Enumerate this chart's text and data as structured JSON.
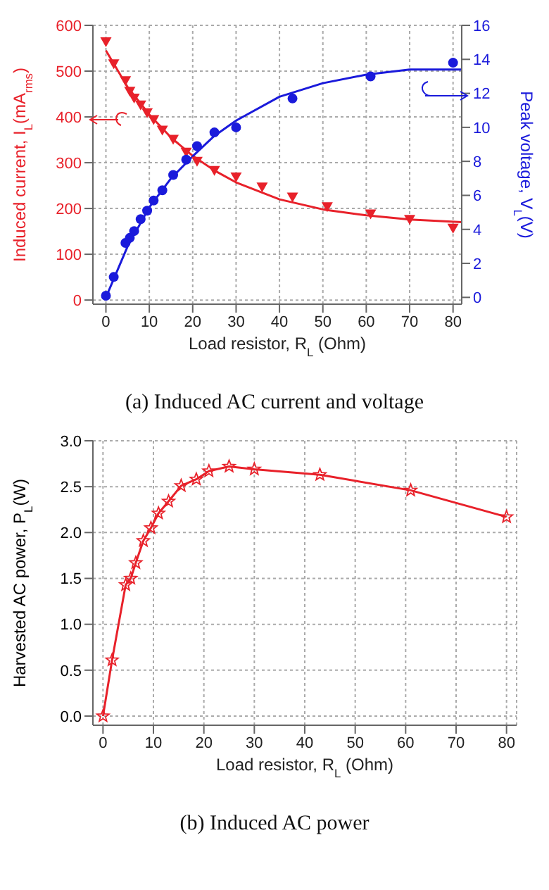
{
  "chart_data": [
    {
      "type": "scatter",
      "xlabel": "Load resistor, R$_{L}$ (Ohm)",
      "ylabel": "Induced current, I$_{L}$(mA$_{rms}$)",
      "y2label": "Peak voltage, V$_{L}$(V)",
      "annotations": [
        "(a) Induced AC current and voltage"
      ],
      "xlim": [
        -3,
        82
      ],
      "xticks": [
        0,
        10,
        20,
        30,
        40,
        50,
        60,
        70,
        80
      ],
      "ylim": [
        -9,
        600
      ],
      "yticks": [
        0,
        100,
        200,
        300,
        400,
        500,
        600
      ],
      "y2lim": [
        -0.4,
        16
      ],
      "y2ticks": [
        0,
        2,
        4,
        6,
        8,
        10,
        12,
        14,
        16
      ],
      "grid": true,
      "series": [
        {
          "color": "#e8212a",
          "marker": "triangle",
          "x": [
            0,
            1.8,
            4.5,
            5.5,
            6.5,
            8,
            9.5,
            11,
            13,
            15.5,
            18.5,
            21,
            25,
            30,
            36,
            43,
            51,
            61,
            70,
            80
          ],
          "values": [
            563,
            515,
            478,
            455,
            440,
            425,
            408,
            393,
            370,
            350,
            322,
            302,
            282,
            268,
            246,
            224,
            203,
            187,
            175,
            156
          ]
        },
        {
          "type": "line",
          "color": "#e8212a",
          "x": [
            0,
            5,
            10,
            15,
            20,
            25,
            30,
            40,
            50,
            60,
            70,
            82
          ],
          "values": [
            545,
            465,
            405,
            355,
            315,
            283,
            257,
            220,
            198,
            185,
            176,
            170
          ]
        },
        {
          "color": "#1a1adb",
          "marker": "circle",
          "axis": "y2",
          "x": [
            0,
            1.8,
            4.5,
            5.5,
            6.5,
            8,
            9.5,
            11,
            13,
            15.5,
            18.5,
            21,
            25,
            30,
            43,
            61,
            80
          ],
          "values": [
            0.1,
            1.2,
            3.2,
            3.5,
            3.9,
            4.6,
            5.1,
            5.7,
            6.3,
            7.2,
            8.1,
            8.9,
            9.7,
            10.0,
            11.7,
            13.0,
            13.8
          ]
        },
        {
          "type": "line",
          "color": "#1a1adb",
          "axis": "y2",
          "x": [
            0,
            5,
            10,
            15,
            20,
            25,
            30,
            40,
            50,
            60,
            70,
            82
          ],
          "values": [
            0,
            3,
            5.3,
            7,
            8.3,
            9.5,
            10.4,
            11.8,
            12.6,
            13.1,
            13.4,
            13.4
          ]
        }
      ]
    },
    {
      "type": "line",
      "xlabel": "Load resistor, R$_{L}$ (Ohm)",
      "ylabel": "Harvested AC power, P$_{L}$(W)",
      "annotations": [
        "(b) Induced AC power"
      ],
      "xlim": [
        -2,
        82
      ],
      "xticks": [
        0,
        10,
        20,
        30,
        40,
        50,
        60,
        70,
        80
      ],
      "ylim": [
        -0.1,
        3.0
      ],
      "yticks": [
        {
          "value": 0,
          "label": "0.0"
        },
        {
          "value": 0.5,
          "label": "0.5"
        },
        {
          "value": 1,
          "label": "1.0"
        },
        {
          "value": 1.5,
          "label": "1.5"
        },
        {
          "value": 2,
          "label": "2.0"
        },
        {
          "value": 2.5,
          "label": "2.5"
        },
        {
          "value": 3,
          "label": "3.0"
        }
      ],
      "grid": true,
      "marker": "star",
      "line_style": "solid",
      "series": [
        {
          "color": "#e8212a",
          "x": [
            0,
            1.8,
            4.5,
            5.5,
            6.5,
            8,
            9.5,
            11,
            13,
            15.5,
            18.5,
            21,
            25,
            30,
            43,
            61,
            80
          ],
          "values": [
            0,
            0.61,
            1.43,
            1.5,
            1.67,
            1.91,
            2.05,
            2.21,
            2.34,
            2.51,
            2.58,
            2.67,
            2.72,
            2.69,
            2.63,
            2.46,
            2.17
          ]
        }
      ]
    }
  ]
}
